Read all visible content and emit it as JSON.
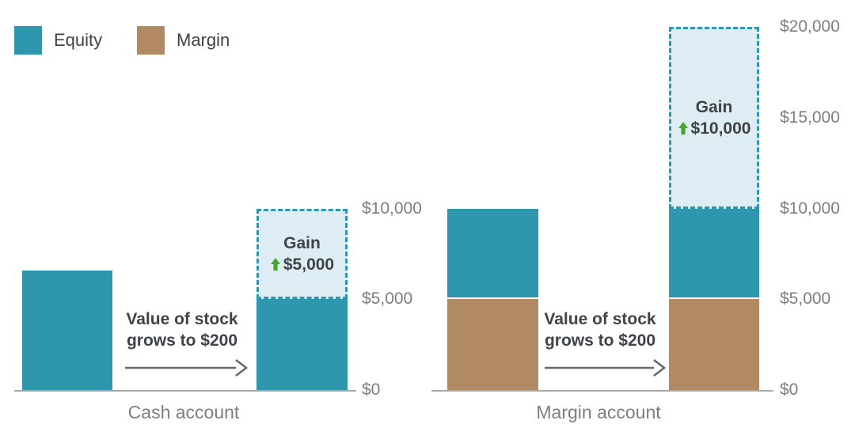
{
  "page": {
    "background": "#ffffff"
  },
  "legend": {
    "items": [
      {
        "label": "Equity",
        "color": "#2e96ad"
      },
      {
        "label": "Margin",
        "color": "#b18a63"
      }
    ]
  },
  "colors": {
    "axis_line": "#a9a9a9",
    "arrow": "#66696b",
    "text_dark": "#3f4247",
    "text_gray": "#7c7e80",
    "gain_fill": "#ddedf3",
    "gain_border": "#2e96ad",
    "gain_arrow_green": "#46a52c"
  },
  "chart_data": [
    {
      "type": "bar",
      "title": "Cash account",
      "xlabel": "Cash account",
      "ylim": [
        0,
        10000
      ],
      "grid": false,
      "legend_position": "top-left",
      "yticks": [
        {
          "value": 0,
          "label": "$0"
        },
        {
          "value": 5000,
          "label": "$5,000"
        },
        {
          "value": 10000,
          "label": "$10,000"
        }
      ],
      "bars": [
        {
          "name": "before",
          "segments": [
            {
              "name": "Equity",
              "value": 6600,
              "color": "#2e96ad",
              "style": "solid"
            }
          ]
        },
        {
          "name": "after",
          "segments": [
            {
              "name": "Equity",
              "value": 5000,
              "color": "#2e96ad",
              "style": "solid"
            },
            {
              "name": "Gain",
              "value": 5000,
              "style": "dashed",
              "fill": "#ddedf3",
              "border": "#2e96ad",
              "label": "Gain",
              "amount": "$5,000",
              "arrow_color": "#46a52c"
            }
          ]
        }
      ],
      "annotation": {
        "line1": "Value of stock",
        "line2": "grows to $200"
      }
    },
    {
      "type": "bar",
      "title": "Margin account",
      "xlabel": "Margin account",
      "ylim": [
        0,
        20000
      ],
      "grid": false,
      "yticks": [
        {
          "value": 0,
          "label": "$0"
        },
        {
          "value": 5000,
          "label": "$5,000"
        },
        {
          "value": 10000,
          "label": "$10,000"
        },
        {
          "value": 15000,
          "label": "$15,000"
        },
        {
          "value": 20000,
          "label": "$20,000"
        }
      ],
      "bars": [
        {
          "name": "before",
          "segments": [
            {
              "name": "Margin",
              "value": 5000,
              "color": "#b18a63",
              "style": "solid"
            },
            {
              "name": "Equity",
              "value": 5000,
              "color": "#2e96ad",
              "style": "solid"
            }
          ]
        },
        {
          "name": "after",
          "segments": [
            {
              "name": "Margin",
              "value": 5000,
              "color": "#b18a63",
              "style": "solid"
            },
            {
              "name": "Equity",
              "value": 5000,
              "color": "#2e96ad",
              "style": "solid"
            },
            {
              "name": "Gain",
              "value": 10000,
              "style": "dashed",
              "fill": "#ddedf3",
              "border": "#2e96ad",
              "label": "Gain",
              "amount": "$10,000",
              "arrow_color": "#46a52c"
            }
          ]
        }
      ],
      "annotation": {
        "line1": "Value of stock",
        "line2": "grows to $200"
      }
    }
  ]
}
